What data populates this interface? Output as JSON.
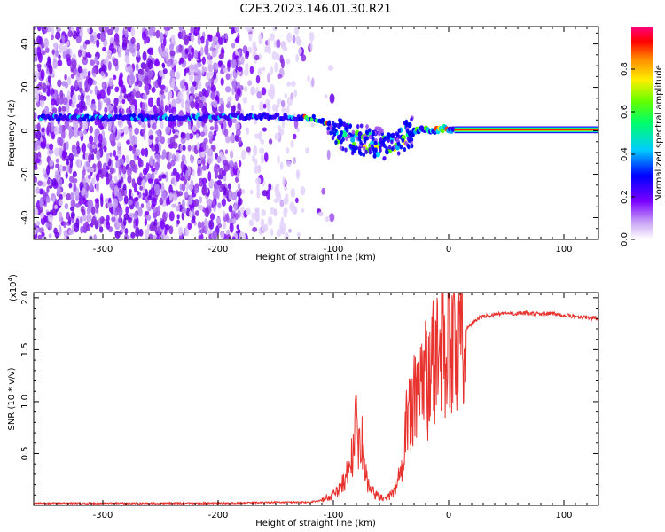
{
  "title": "C2E3.2023.146.01.30.R21",
  "chart_data": [
    {
      "type": "heatmap",
      "title": "",
      "xlabel": "Height of straight line (km)",
      "ylabel": "Frequency (Hz)",
      "xlim": [
        -360,
        130
      ],
      "ylim": [
        -50,
        48
      ],
      "xticks": [
        -300,
        -200,
        -100,
        0,
        100
      ],
      "yticks": [
        -40,
        -20,
        0,
        20,
        40
      ],
      "ridge": [
        {
          "x": -355,
          "y": 6
        },
        {
          "x": -300,
          "y": 6
        },
        {
          "x": -250,
          "y": 6
        },
        {
          "x": -200,
          "y": 6.5
        },
        {
          "x": -150,
          "y": 6.5
        },
        {
          "x": -120,
          "y": 6
        },
        {
          "x": -110,
          "y": 5
        },
        {
          "x": -100,
          "y": 1
        },
        {
          "x": -90,
          "y": -2
        },
        {
          "x": -80,
          "y": -4
        },
        {
          "x": -70,
          "y": -5
        },
        {
          "x": -60,
          "y": -6
        },
        {
          "x": -50,
          "y": -6
        },
        {
          "x": -45,
          "y": -5
        },
        {
          "x": -35,
          "y": -2
        },
        {
          "x": -25,
          "y": 1
        },
        {
          "x": -15,
          "y": 0
        },
        {
          "x": -5,
          "y": 1
        },
        {
          "x": 5,
          "y": 0.5
        },
        {
          "x": 130,
          "y": 0.5
        }
      ],
      "colorbar": {
        "label": "Normalized spectral amplitude",
        "range": [
          0,
          1
        ],
        "ticks": [
          "0.0",
          "0.2",
          "0.4",
          "0.6",
          "0.8"
        ]
      }
    },
    {
      "type": "line",
      "title": "",
      "xlabel": "Height of straight line (km)",
      "ylabel": "SNR (10 * v/v)",
      "yscale_label": "(x10",
      "yscale_exp": "4",
      "yscale_close": ")",
      "xlim": [
        -360,
        130
      ],
      "ylim": [
        0,
        2.05
      ],
      "xticks": [
        -300,
        -200,
        -100,
        0,
        100
      ],
      "yticks": [
        "0.5",
        "1.0",
        "1.5",
        "2.0"
      ],
      "color": "#e8322e",
      "series": [
        {
          "x": [
            -360,
            -300,
            -200,
            -150,
            -120,
            -110,
            -100,
            -95,
            -90,
            -85,
            -82,
            -80,
            -78,
            -76,
            -74,
            -72,
            -70,
            -65,
            -60,
            -55,
            -50,
            -45,
            -40,
            -38,
            -35,
            -32,
            -30,
            -28,
            -25,
            -22,
            -20,
            -18,
            -15,
            -12,
            -10,
            -8,
            -5,
            -2,
            0,
            2,
            5,
            8,
            10,
            15,
            20,
            25,
            30,
            40,
            50,
            60,
            70,
            80,
            90,
            100,
            110,
            120,
            130
          ],
          "y": [
            0.02,
            0.02,
            0.02,
            0.03,
            0.03,
            0.05,
            0.1,
            0.15,
            0.25,
            0.4,
            0.6,
            0.8,
            0.5,
            0.75,
            0.45,
            0.3,
            0.2,
            0.12,
            0.08,
            0.06,
            0.1,
            0.2,
            0.4,
            0.7,
            0.9,
            0.8,
            1.1,
            0.9,
            1.2,
            1.05,
            1.4,
            1.1,
            1.5,
            1.25,
            1.6,
            1.3,
            1.7,
            1.45,
            1.85,
            1.5,
            1.55,
            1.45,
            1.6,
            1.7,
            1.75,
            1.8,
            1.82,
            1.84,
            1.85,
            1.85,
            1.85,
            1.84,
            1.85,
            1.83,
            1.82,
            1.81,
            1.8
          ]
        }
      ]
    }
  ]
}
